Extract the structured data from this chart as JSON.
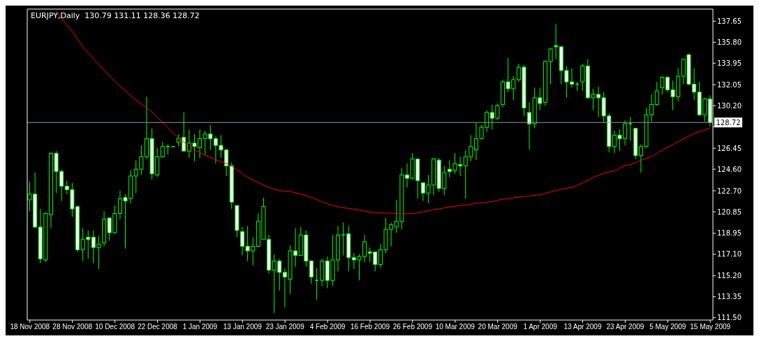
{
  "chart_data": {
    "type": "candlestick",
    "title": "EURJPY,Daily  130.79 131.11 128.36 128.72",
    "categories": [
      "18 Nov 2008",
      null,
      null,
      null,
      null,
      null,
      null,
      null,
      "28 Nov 2008",
      null,
      null,
      null,
      null,
      null,
      null,
      null,
      "10 Dec 2008",
      null,
      null,
      null,
      null,
      null,
      null,
      null,
      "22 Dec 2008",
      null,
      null,
      null,
      null,
      null,
      null,
      null,
      "1 Jan 2009",
      null,
      null,
      null,
      null,
      null,
      null,
      null,
      "13 Jan 2009",
      null,
      null,
      null,
      null,
      null,
      null,
      null,
      "23 Jan 2009",
      null,
      null,
      null,
      null,
      null,
      null,
      null,
      "4 Feb 2009",
      null,
      null,
      null,
      null,
      null,
      null,
      null,
      "16 Feb 2009",
      null,
      null,
      null,
      null,
      null,
      null,
      null,
      "26 Feb 2009",
      null,
      null,
      null,
      null,
      null,
      null,
      null,
      "10 Mar 2009",
      null,
      null,
      null,
      null,
      null,
      null,
      null,
      "20 Mar 2009",
      null,
      null,
      null,
      null,
      null,
      null,
      null,
      "1 Apr 2009",
      null,
      null,
      null,
      null,
      null,
      null,
      null,
      "13 Apr 2009",
      null,
      null,
      null,
      null,
      null,
      null,
      null,
      "23 Apr 2009",
      null,
      null,
      null,
      null,
      null,
      null,
      null,
      "5 May 2009",
      null,
      null,
      null,
      null,
      null,
      null,
      null,
      "15 May 2009"
    ],
    "series": [
      {
        "type": "line",
        "color": "#ff0000",
        "values": [
          null,
          null,
          null,
          null,
          null,
          138.49,
          137.9,
          137.3,
          136.73,
          136.05,
          135.37,
          134.85,
          134.33,
          133.81,
          133.3,
          132.8,
          132.35,
          131.9,
          131.5,
          131.08,
          130.7,
          130.35,
          130.01,
          129.6,
          129.15,
          128.74,
          128.27,
          127.8,
          127.34,
          126.97,
          126.63,
          126.3,
          126.06,
          125.82,
          125.62,
          125.43,
          125.26,
          125.1,
          124.85,
          124.52,
          124.2,
          123.87,
          123.64,
          123.42,
          123.19,
          122.99,
          122.85,
          122.7,
          122.67,
          122.64,
          122.52,
          122.41,
          122.26,
          122.11,
          121.92,
          121.72,
          121.55,
          121.39,
          121.3,
          121.2,
          121.14,
          121.08,
          121.0,
          120.91,
          120.83,
          120.75,
          120.74,
          120.73,
          120.73,
          120.71,
          120.69,
          120.67,
          120.71,
          120.75,
          120.85,
          120.94,
          121.02,
          121.1,
          121.19,
          121.28,
          121.33,
          121.39,
          121.45,
          121.51,
          121.57,
          121.63,
          121.7,
          121.76,
          121.86,
          121.96,
          121.98,
          122.07,
          122.15,
          122.2,
          122.25,
          122.3,
          122.35,
          122.47,
          122.6,
          122.72,
          122.84,
          122.92,
          122.99,
          123.18,
          123.38,
          123.62,
          123.87,
          124.07,
          124.26,
          124.36,
          124.45,
          124.7,
          124.94,
          125.0,
          125.2,
          125.39,
          125.55,
          125.72,
          126.01,
          126.3,
          126.55,
          126.79,
          127.04,
          127.28,
          127.52,
          127.77,
          127.92,
          128.06,
          128.25
        ]
      },
      {
        "color": "#00ff00",
        "ohlc": [
          [
            121.9,
            123.5,
            120.9,
            122.4
          ],
          [
            122.4,
            124.3,
            119.4,
            119.5
          ],
          [
            119.5,
            121.1,
            116.3,
            116.7
          ],
          [
            116.6,
            120.8,
            116.4,
            120.7
          ],
          [
            120.6,
            126.1,
            119.4,
            126.0
          ],
          [
            126.0,
            126.2,
            122.5,
            124.4
          ],
          [
            124.4,
            124.6,
            121.8,
            123.1
          ],
          [
            123.1,
            123.6,
            122.4,
            122.8
          ],
          [
            122.8,
            123.4,
            120.4,
            121.1
          ],
          [
            121.3,
            121.4,
            117.3,
            117.5
          ],
          [
            117.5,
            119.4,
            116.5,
            118.4
          ],
          [
            118.6,
            119.2,
            116.7,
            118.4
          ],
          [
            118.6,
            119.2,
            116.3,
            117.7
          ],
          [
            117.7,
            118.7,
            115.8,
            118.0
          ],
          [
            118.1,
            120.9,
            117.8,
            120.2
          ],
          [
            120.3,
            120.3,
            118.3,
            119.0
          ],
          [
            119.0,
            121.4,
            118.9,
            120.7
          ],
          [
            120.7,
            122.7,
            120.2,
            122.0
          ],
          [
            122.1,
            122.4,
            117.6,
            121.8
          ],
          [
            122.0,
            124.5,
            121.6,
            124.0
          ],
          [
            124.0,
            125.4,
            122.5,
            124.6
          ],
          [
            124.6,
            126.7,
            124.1,
            125.7
          ],
          [
            125.7,
            131.0,
            125.5,
            127.3
          ],
          [
            127.3,
            128.2,
            123.7,
            124.2
          ],
          [
            124.1,
            126.5,
            123.9,
            125.7
          ],
          [
            125.7,
            127.0,
            125.6,
            126.6
          ],
          [
            126.6,
            126.8,
            125.9,
            126.6
          ],
          [
            126.6,
            126.6,
            126.6,
            126.6
          ],
          [
            127.0,
            127.7,
            126.6,
            127.3
          ],
          [
            127.4,
            129.6,
            126.2,
            126.2
          ],
          [
            126.2,
            128.1,
            125.6,
            126.9
          ],
          [
            126.9,
            127.7,
            125.3,
            126.6
          ],
          [
            126.5,
            128.1,
            125.6,
            127.3
          ],
          [
            127.3,
            128.0,
            125.9,
            127.7
          ],
          [
            127.7,
            128.5,
            126.3,
            127.3
          ],
          [
            127.3,
            127.5,
            125.1,
            126.7
          ],
          [
            126.7,
            127.6,
            125.6,
            126.3
          ],
          [
            126.3,
            126.4,
            124.0,
            124.9
          ],
          [
            124.9,
            125.2,
            121.1,
            121.7
          ],
          [
            121.4,
            121.4,
            118.6,
            119.2
          ],
          [
            119.1,
            119.5,
            117.0,
            117.8
          ],
          [
            117.8,
            119.6,
            116.5,
            117.4
          ],
          [
            117.4,
            118.6,
            116.1,
            117.8
          ],
          [
            117.8,
            120.7,
            117.7,
            120.0
          ],
          [
            118.4,
            122.1,
            118.4,
            121.3
          ],
          [
            118.4,
            118.8,
            115.4,
            115.7
          ],
          [
            115.7,
            117.1,
            111.9,
            116.5
          ],
          [
            116.5,
            116.7,
            113.9,
            115.5
          ],
          [
            115.5,
            115.9,
            112.4,
            115.1
          ],
          [
            114.9,
            117.9,
            113.6,
            117.4
          ],
          [
            117.4,
            119.4,
            116.0,
            117.0
          ],
          [
            117.0,
            119.5,
            117.0,
            118.8
          ],
          [
            118.8,
            119.2,
            116.0,
            116.5
          ],
          [
            116.5,
            116.6,
            114.5,
            115.1
          ],
          [
            114.8,
            115.9,
            113.1,
            114.8
          ],
          [
            114.8,
            116.7,
            114.3,
            116.5
          ],
          [
            116.5,
            116.9,
            114.1,
            114.8
          ],
          [
            114.8,
            118.8,
            114.3,
            116.6
          ],
          [
            116.6,
            119.6,
            115.6,
            118.8
          ],
          [
            118.8,
            119.9,
            117.0,
            118.8
          ],
          [
            118.9,
            119.6,
            115.6,
            116.8
          ],
          [
            116.8,
            117.2,
            115.8,
            116.6
          ],
          [
            116.6,
            117.1,
            114.8,
            116.9
          ],
          [
            116.9,
            118.8,
            116.4,
            118.2
          ],
          [
            117.3,
            117.7,
            116.4,
            117.2
          ],
          [
            117.3,
            117.3,
            115.6,
            116.2
          ],
          [
            116.2,
            118.0,
            115.9,
            117.5
          ],
          [
            117.5,
            120.3,
            117.2,
            119.3
          ],
          [
            119.3,
            119.9,
            117.8,
            119.7
          ],
          [
            119.5,
            121.9,
            119.0,
            120.0
          ],
          [
            120.0,
            124.7,
            119.3,
            124.1
          ],
          [
            124.1,
            125.1,
            123.0,
            123.8
          ],
          [
            123.8,
            126.0,
            123.7,
            125.5
          ],
          [
            125.5,
            125.5,
            122.0,
            123.6
          ],
          [
            123.4,
            123.4,
            121.8,
            122.5
          ],
          [
            122.5,
            124.1,
            121.6,
            123.2
          ],
          [
            123.2,
            125.6,
            122.3,
            125.5
          ],
          [
            125.4,
            125.6,
            122.6,
            122.9
          ],
          [
            122.9,
            124.9,
            122.3,
            124.3
          ],
          [
            124.6,
            125.4,
            123.9,
            124.4
          ],
          [
            124.5,
            126.0,
            124.2,
            125.1
          ],
          [
            125.0,
            125.7,
            124.0,
            124.9
          ],
          [
            124.9,
            126.3,
            122.0,
            125.7
          ],
          [
            125.7,
            127.6,
            125.3,
            126.6
          ],
          [
            126.3,
            128.7,
            125.4,
            127.3
          ],
          [
            127.3,
            128.5,
            127.2,
            128.3
          ],
          [
            128.3,
            129.8,
            127.9,
            129.6
          ],
          [
            129.6,
            130.3,
            128.1,
            129.1
          ],
          [
            129.1,
            130.4,
            128.9,
            130.2
          ],
          [
            130.3,
            132.5,
            130.1,
            132.3
          ],
          [
            132.3,
            134.4,
            131.4,
            131.7
          ],
          [
            131.7,
            132.8,
            130.7,
            132.5
          ],
          [
            132.5,
            133.9,
            132.3,
            133.6
          ],
          [
            133.6,
            133.8,
            129.3,
            130.0
          ],
          [
            129.6,
            130.5,
            126.3,
            128.6
          ],
          [
            128.6,
            131.8,
            128.2,
            130.9
          ],
          [
            130.9,
            131.8,
            129.8,
            130.4
          ],
          [
            130.5,
            134.2,
            130.2,
            134.1
          ],
          [
            134.1,
            135.3,
            132.1,
            135.2
          ],
          [
            135.5,
            137.4,
            134.3,
            135.4
          ],
          [
            135.4,
            135.4,
            132.1,
            133.3
          ],
          [
            133.3,
            133.7,
            130.9,
            132.3
          ],
          [
            132.3,
            133.5,
            131.8,
            132.1
          ],
          [
            132.1,
            132.3,
            131.5,
            132.1
          ],
          [
            132.3,
            133.9,
            131.5,
            133.7
          ],
          [
            133.7,
            134.3,
            130.8,
            130.9
          ],
          [
            130.9,
            131.7,
            129.8,
            131.2
          ],
          [
            131.2,
            131.9,
            129.2,
            130.9
          ],
          [
            130.9,
            131.4,
            128.7,
            129.3
          ],
          [
            129.3,
            129.5,
            126.1,
            126.6
          ],
          [
            126.6,
            128.0,
            126.0,
            127.6
          ],
          [
            127.6,
            128.1,
            126.2,
            127.3
          ],
          [
            127.3,
            128.9,
            126.7,
            128.6
          ],
          [
            128.6,
            129.2,
            127.1,
            128.6
          ],
          [
            128.2,
            128.2,
            125.5,
            125.8
          ],
          [
            125.8,
            126.8,
            124.3,
            126.6
          ],
          [
            126.6,
            130.0,
            126.5,
            129.4
          ],
          [
            129.4,
            131.2,
            128.8,
            130.3
          ],
          [
            130.3,
            132.3,
            130.2,
            131.5
          ],
          [
            131.8,
            132.8,
            131.2,
            132.7
          ],
          [
            132.7,
            132.8,
            131.4,
            131.6
          ],
          [
            131.6,
            132.4,
            129.8,
            131.0
          ],
          [
            131.0,
            133.5,
            130.6,
            132.8
          ],
          [
            132.8,
            134.3,
            132.1,
            134.3
          ],
          [
            134.7,
            134.8,
            132.0,
            132.1
          ],
          [
            132.1,
            133.5,
            130.7,
            131.4
          ],
          [
            131.4,
            132.3,
            129.3,
            129.4
          ],
          [
            129.4,
            130.9,
            128.8,
            130.8
          ],
          [
            130.79,
            131.11,
            128.36,
            128.72
          ]
        ]
      }
    ],
    "ylim": [
      111.3,
      138.72
    ],
    "yticks": [
      137.65,
      {
        "value": 135.8,
        "label": "135.80"
      },
      133.95,
      132.05,
      {
        "value": 130.2,
        "label": "130.20"
      },
      {
        "value": 128.35,
        "label": null
      },
      126.45,
      {
        "value": 124.6,
        "label": "124.60"
      },
      {
        "value": 122.7,
        "label": "122.70"
      },
      120.85,
      118.95,
      {
        "value": 117.1,
        "label": "117.10"
      },
      {
        "value": 115.2,
        "label": "115.20"
      },
      113.35,
      {
        "value": 111.5,
        "label": "111.50"
      }
    ],
    "ref_lines": [
      {
        "axis": "y",
        "value": 128.72,
        "label": "128.72",
        "color": "#8899aa"
      }
    ]
  }
}
